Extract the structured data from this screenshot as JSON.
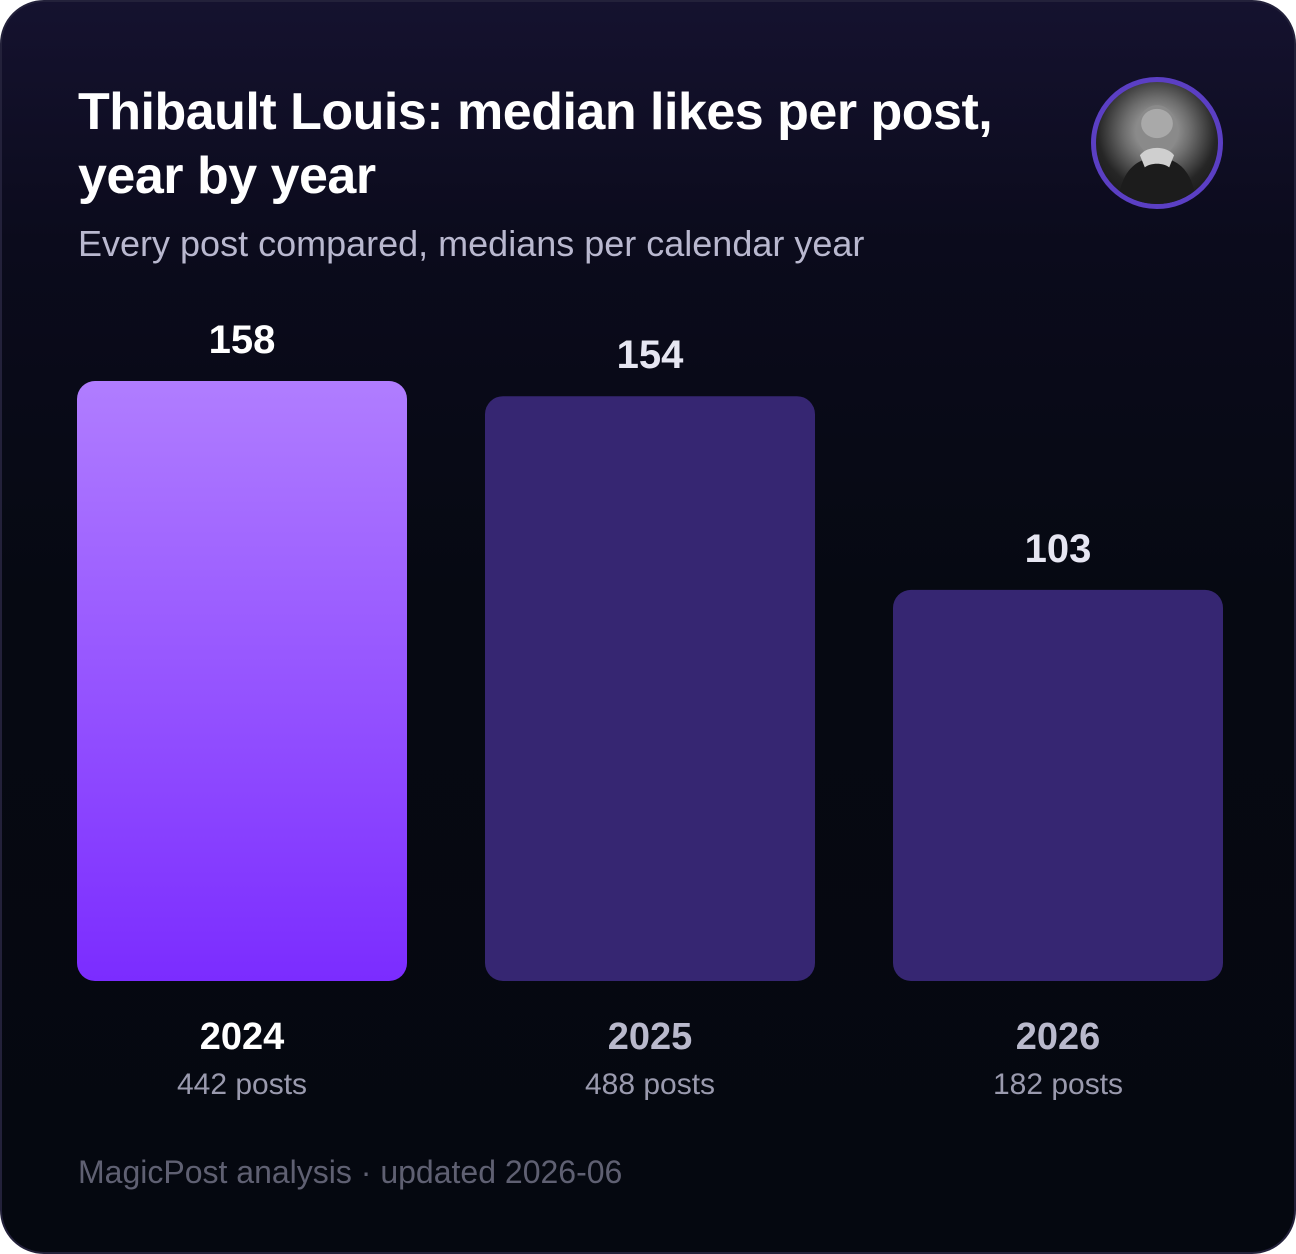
{
  "header": {
    "title": "Thibault Louis: median likes per post, year by year",
    "subtitle": "Every post compared, medians per calendar year",
    "avatar_icon": "person-portrait-icon"
  },
  "chart_data": {
    "type": "bar",
    "title": "Thibault Louis: median likes per post, year by year",
    "subtitle": "Every post compared, medians per calendar year",
    "xlabel": "",
    "ylabel": "",
    "categories": [
      "2024",
      "2025",
      "2026"
    ],
    "values": [
      158,
      154,
      103
    ],
    "value_labels": [
      "158",
      "154",
      "103"
    ],
    "sublabels": [
      "442 posts",
      "488 posts",
      "182 posts"
    ],
    "post_counts": [
      442,
      488,
      182
    ],
    "ylim": [
      0,
      158
    ],
    "grid": false,
    "legend": "none",
    "highlight_index": 0
  },
  "colors": {
    "highlight_top": "#b07dff",
    "highlight_bottom": "#7b2cff",
    "bar": "#362672",
    "value_label": "#ffffff",
    "value_label_muted": "#e6e6f2",
    "category_highlight": "#ffffff",
    "category_muted": "#b9b9cc",
    "sublabel": "#9a9aae"
  },
  "footer": {
    "text": "MagicPost analysis · updated 2026-06"
  }
}
